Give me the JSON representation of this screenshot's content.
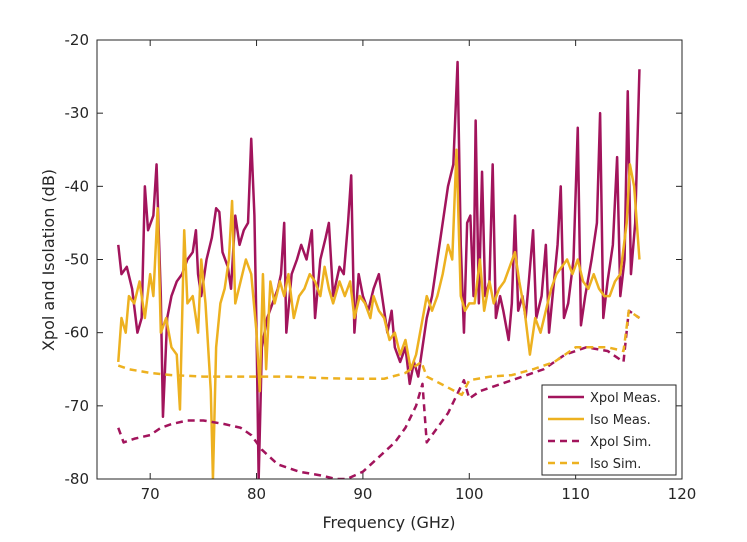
{
  "chart_data": {
    "type": "line",
    "xlabel": "Frequency (GHz)",
    "ylabel": "Xpol and Isolation (dB)",
    "xlim": [
      65,
      120
    ],
    "xticks": [
      70,
      80,
      90,
      100,
      110,
      120
    ],
    "ylim": [
      -80,
      -20
    ],
    "yticks": [
      -80,
      -70,
      -60,
      -50,
      -40,
      -30,
      -20
    ],
    "grid": false,
    "legend": "lower right",
    "series": [
      {
        "name": "Xpol Meas.",
        "color": "#a2145c",
        "dash": false,
        "x": [
          67,
          67.3,
          67.8,
          68.3,
          68.8,
          69.2,
          69.5,
          69.8,
          70.3,
          70.6,
          71,
          71.2,
          71.6,
          72,
          72.5,
          73,
          73.5,
          74,
          74.3,
          74.5,
          74.8,
          75.3,
          75.8,
          76.2,
          76.5,
          76.8,
          77.3,
          77.6,
          78,
          78.4,
          78.8,
          79.2,
          79.5,
          79.8,
          80,
          80.2,
          80.5,
          81,
          81.5,
          82,
          82.3,
          82.6,
          82.8,
          83.3,
          83.8,
          84.2,
          84.7,
          85.2,
          85.5,
          86,
          86.5,
          86.8,
          87.2,
          87.8,
          88.2,
          88.6,
          88.9,
          89.2,
          89.6,
          90,
          90.5,
          91,
          91.5,
          91.9,
          92.3,
          92.7,
          93,
          93.5,
          94,
          94.4,
          94.8,
          95.2,
          95.6,
          96,
          96.5,
          97,
          97.5,
          98,
          98.5,
          98.9,
          99.2,
          99.5,
          99.8,
          100.1,
          100.4,
          100.6,
          100.9,
          101.2,
          101.5,
          101.9,
          102.2,
          102.5,
          102.9,
          103.2,
          103.7,
          104,
          104.3,
          104.6,
          105,
          105.3,
          105.6,
          106,
          106.3,
          106.8,
          107.2,
          107.5,
          107.9,
          108.3,
          108.6,
          108.9,
          109.3,
          109.8,
          110.2,
          110.5,
          110.9,
          111.5,
          112,
          112.3,
          112.6,
          113,
          113.5,
          113.9,
          114.2,
          114.6,
          114.9,
          115.2,
          115.6,
          116
        ],
        "values": [
          -48,
          -52,
          -51,
          -54,
          -60,
          -58,
          -40,
          -46,
          -44,
          -37,
          -55,
          -71.5,
          -58,
          -55,
          -53,
          -52,
          -50,
          -49,
          -46,
          -52,
          -55,
          -50,
          -47,
          -43,
          -43.5,
          -49,
          -51,
          -54,
          -44,
          -48,
          -46,
          -45,
          -33.5,
          -44,
          -60,
          -80,
          -62,
          -58,
          -56,
          -54,
          -52,
          -45,
          -60,
          -52,
          -50,
          -48,
          -50,
          -46,
          -58,
          -50,
          -47,
          -45,
          -55,
          -51,
          -52,
          -45,
          -38.5,
          -60,
          -52,
          -55,
          -57,
          -54,
          -52,
          -56,
          -60,
          -57,
          -62,
          -64,
          -62,
          -67,
          -64,
          -66,
          -62,
          -58,
          -55,
          -50,
          -45,
          -40,
          -37,
          -23,
          -48,
          -60,
          -45,
          -44,
          -55,
          -31,
          -56,
          -38,
          -55,
          -53,
          -37,
          -58,
          -55,
          -57,
          -61,
          -56,
          -44,
          -57,
          -55,
          -58,
          -53,
          -46,
          -58,
          -55,
          -48,
          -60,
          -54,
          -48,
          -40,
          -58,
          -56,
          -50,
          -32,
          -59,
          -55,
          -50,
          -45,
          -30,
          -58,
          -53,
          -48,
          -36,
          -55,
          -50,
          -27,
          -52,
          -45,
          -24
        ]
      },
      {
        "name": "Iso Meas.",
        "color": "#edb120",
        "dash": false,
        "x": [
          67,
          67.3,
          67.7,
          68,
          68.5,
          69,
          69.5,
          70,
          70.3,
          70.7,
          71,
          71.5,
          72,
          72.5,
          72.8,
          73.2,
          73.5,
          74,
          74.5,
          74.8,
          75.2,
          75.7,
          75.9,
          76.2,
          76.6,
          77,
          77.4,
          77.7,
          78,
          78.5,
          79,
          79.5,
          80,
          80.3,
          80.6,
          80.9,
          81.3,
          81.7,
          82.2,
          82.6,
          83,
          83.5,
          84,
          84.5,
          85,
          85.5,
          86,
          86.4,
          86.8,
          87.2,
          87.8,
          88.3,
          88.8,
          89.2,
          89.7,
          90.2,
          90.7,
          91,
          91.5,
          92,
          92.5,
          93,
          93.5,
          94,
          94.5,
          95,
          95.5,
          96,
          96.5,
          97,
          97.5,
          98,
          98.4,
          98.8,
          99.2,
          99.6,
          100,
          100.5,
          101,
          101.4,
          101.9,
          102.3,
          102.8,
          103.3,
          103.8,
          104.3,
          104.7,
          105.2,
          105.7,
          106.2,
          106.7,
          107.2,
          107.7,
          108.2,
          108.7,
          109.2,
          109.7,
          110.2,
          110.7,
          111.2,
          111.7,
          112.2,
          112.7,
          113.2,
          113.7,
          114.2,
          114.8,
          115.1,
          115.5,
          116
        ],
        "values": [
          -64,
          -58,
          -60,
          -55,
          -56,
          -53,
          -58,
          -52,
          -55,
          -43,
          -60,
          -58,
          -62,
          -63,
          -70.5,
          -46,
          -56,
          -55,
          -60,
          -50,
          -56,
          -68,
          -80,
          -62,
          -56,
          -54,
          -50,
          -42,
          -56,
          -53,
          -50,
          -52,
          -60,
          -68,
          -52,
          -65,
          -53,
          -56,
          -53,
          -55,
          -52,
          -58,
          -55,
          -54,
          -52,
          -53,
          -55,
          -51,
          -54,
          -56,
          -53,
          -55,
          -53,
          -58,
          -55,
          -56,
          -58,
          -55,
          -57,
          -58,
          -61,
          -60,
          -63,
          -61,
          -65,
          -63,
          -59,
          -55,
          -57,
          -55,
          -52,
          -48,
          -50,
          -35,
          -55,
          -57,
          -56,
          -56,
          -50,
          -57,
          -53,
          -56,
          -54,
          -53,
          -51,
          -49,
          -53,
          -57,
          -63,
          -58,
          -60,
          -57,
          -54,
          -52,
          -51,
          -50,
          -52,
          -50,
          -53,
          -54,
          -52,
          -54,
          -55,
          -55,
          -53,
          -52,
          -45,
          -37,
          -40,
          -50
        ]
      },
      {
        "name": "Xpol Sim.",
        "color": "#a2145c",
        "dash": true,
        "x": [
          67,
          67.5,
          68.5,
          70,
          71,
          72,
          73.5,
          75,
          77,
          78.5,
          79.5,
          80.5,
          82,
          84,
          86,
          87.5,
          88.5,
          90,
          91.5,
          93,
          94,
          95,
          95.6,
          96,
          97,
          98,
          99,
          99.5,
          100,
          101,
          103,
          105,
          107,
          109,
          111,
          113,
          114.5,
          115,
          116
        ],
        "values": [
          -73,
          -75,
          -74.5,
          -74,
          -73,
          -72.5,
          -72,
          -72,
          -72.5,
          -73,
          -74,
          -76,
          -78,
          -79,
          -79.5,
          -80,
          -80,
          -79,
          -77,
          -75,
          -73,
          -70,
          -67,
          -75,
          -73,
          -71,
          -68,
          -66.5,
          -69,
          -68,
          -67,
          -66,
          -65,
          -63,
          -62,
          -62.5,
          -64,
          -57,
          -58
        ]
      },
      {
        "name": "Iso Sim.",
        "color": "#edb120",
        "dash": true,
        "x": [
          67,
          68,
          70,
          72,
          75,
          78,
          80,
          83,
          86,
          89,
          92,
          94,
          95.5,
          96,
          98,
          99.3,
          100,
          102,
          104,
          106,
          108,
          110,
          113,
          114.5,
          115,
          116
        ],
        "values": [
          -64.5,
          -65,
          -65.5,
          -65.8,
          -66,
          -66,
          -66,
          -66,
          -66.2,
          -66.3,
          -66.3,
          -65.5,
          -64,
          -66,
          -67.5,
          -68.5,
          -66.5,
          -66,
          -65.8,
          -65,
          -64,
          -62,
          -62,
          -62.5,
          -57,
          -58
        ]
      }
    ]
  }
}
